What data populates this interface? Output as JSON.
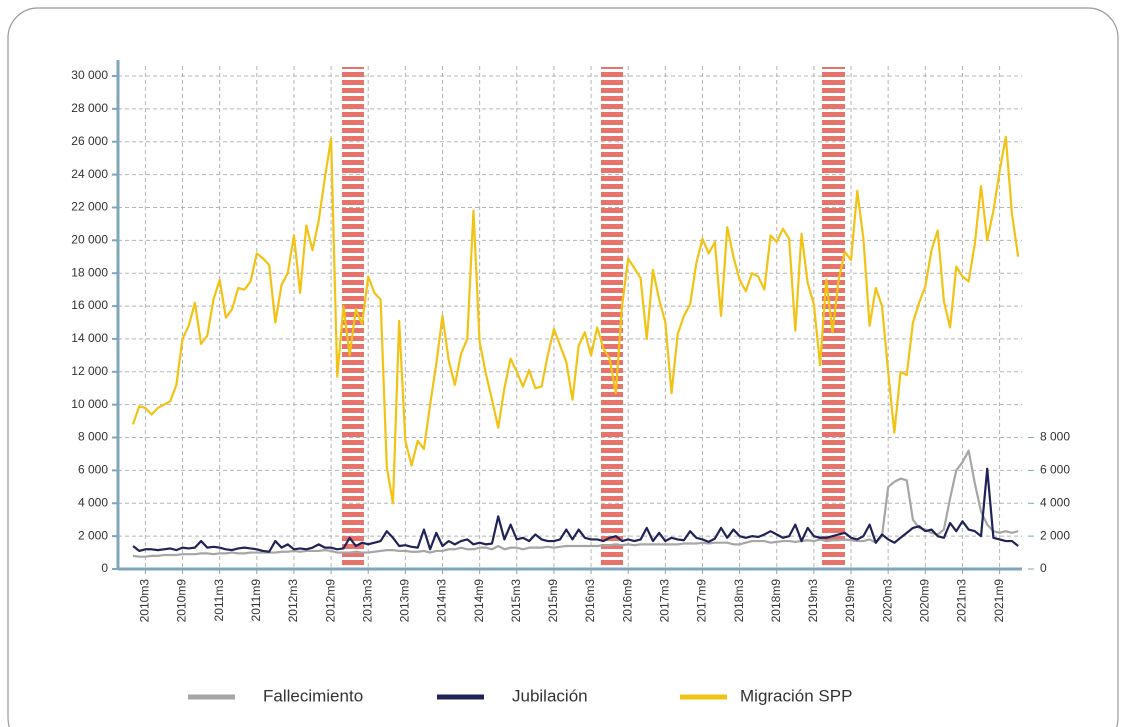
{
  "chart_data": {
    "type": "line",
    "categories": [
      null,
      null,
      "2010m3",
      null,
      null,
      null,
      null,
      null,
      "2010m9",
      null,
      null,
      null,
      null,
      null,
      "2011m3",
      null,
      null,
      null,
      null,
      null,
      "2011m9",
      null,
      null,
      null,
      null,
      null,
      "2012m3",
      null,
      null,
      null,
      null,
      null,
      "2012m9",
      null,
      null,
      null,
      null,
      null,
      "2013m3",
      null,
      null,
      null,
      null,
      null,
      "2013m9",
      null,
      null,
      null,
      null,
      null,
      "2014m3",
      null,
      null,
      null,
      null,
      null,
      "2014m9",
      null,
      null,
      null,
      null,
      null,
      "2015m3",
      null,
      null,
      null,
      null,
      null,
      "2015m9",
      null,
      null,
      null,
      null,
      null,
      "2016m3",
      null,
      null,
      null,
      null,
      null,
      "2016m9",
      null,
      null,
      null,
      null,
      null,
      "2017m3",
      null,
      null,
      null,
      null,
      null,
      "2017m9",
      null,
      null,
      null,
      null,
      null,
      "2018m3",
      null,
      null,
      null,
      null,
      null,
      "2018m9",
      null,
      null,
      null,
      null,
      null,
      "2019m3",
      null,
      null,
      null,
      null,
      null,
      "2019m9",
      null,
      null,
      null,
      null,
      null,
      "2020m3",
      null,
      null,
      null,
      null,
      null,
      "2020m9",
      null,
      null,
      null,
      null,
      null,
      "2021m3",
      null,
      null,
      null,
      null,
      null,
      "2021m9",
      null,
      null,
      null
    ],
    "series": [
      {
        "name": "Fallecimiento",
        "color": "#a6a6a6",
        "axis": "y2",
        "values": [
          800,
          750,
          750,
          800,
          800,
          850,
          850,
          850,
          900,
          900,
          900,
          950,
          950,
          900,
          950,
          950,
          1000,
          950,
          950,
          1000,
          1000,
          1000,
          1000,
          1000,
          1050,
          1050,
          1100,
          1050,
          1100,
          1100,
          1100,
          1150,
          1100,
          1000,
          1000,
          1000,
          1050,
          1000,
          1000,
          1050,
          1100,
          1150,
          1150,
          1100,
          1100,
          1050,
          1050,
          1100,
          1000,
          1100,
          1100,
          1200,
          1200,
          1300,
          1200,
          1200,
          1300,
          1300,
          1200,
          1400,
          1200,
          1300,
          1300,
          1200,
          1300,
          1300,
          1300,
          1350,
          1300,
          1350,
          1400,
          1400,
          1400,
          1400,
          1400,
          1400,
          1450,
          1450,
          1500,
          1450,
          1500,
          1450,
          1500,
          1500,
          1500,
          1500,
          1500,
          1500,
          1500,
          1550,
          1550,
          1550,
          1600,
          1550,
          1600,
          1600,
          1600,
          1500,
          1500,
          1600,
          1700,
          1700,
          1700,
          1600,
          1650,
          1700,
          1700,
          1650,
          1700,
          1750,
          1700,
          1800,
          1700,
          1750,
          1750,
          1800,
          1750,
          1700,
          1700,
          1800,
          1600,
          2000,
          5000,
          5300,
          5500,
          5400,
          3000,
          2500,
          2400,
          2200,
          2100,
          2400,
          4300,
          6000,
          6500,
          7200,
          5200,
          3500,
          2700,
          2300,
          2200,
          2300,
          2200,
          2300
        ]
      },
      {
        "name": "Jubilación",
        "color": "#1f2356",
        "axis": "y2",
        "values": [
          1400,
          1100,
          1200,
          1200,
          1150,
          1200,
          1250,
          1150,
          1300,
          1250,
          1300,
          1700,
          1300,
          1350,
          1300,
          1200,
          1150,
          1250,
          1300,
          1250,
          1200,
          1100,
          1050,
          1700,
          1300,
          1500,
          1200,
          1250,
          1200,
          1300,
          1500,
          1300,
          1300,
          1200,
          1250,
          1900,
          1400,
          1600,
          1500,
          1600,
          1700,
          2300,
          1900,
          1400,
          1450,
          1350,
          1300,
          2400,
          1200,
          2200,
          1400,
          1700,
          1500,
          1700,
          1800,
          1500,
          1600,
          1500,
          1550,
          3200,
          1800,
          2700,
          1800,
          1900,
          1700,
          2100,
          1800,
          1700,
          1700,
          1800,
          2400,
          1800,
          2400,
          1900,
          1800,
          1800,
          1700,
          1900,
          2000,
          1700,
          1800,
          1700,
          1800,
          2500,
          1700,
          2200,
          1700,
          1900,
          1800,
          1750,
          2300,
          1900,
          1800,
          1650,
          1850,
          2500,
          1900,
          2400,
          2000,
          1900,
          2000,
          1950,
          2100,
          2300,
          2100,
          1900,
          2000,
          2700,
          1700,
          2500,
          2000,
          1900,
          1900,
          2000,
          2100,
          2200,
          1900,
          1800,
          2000,
          2700,
          1600,
          2100,
          1800,
          1600,
          1900,
          2200,
          2500,
          2600,
          2300,
          2400,
          2000,
          1900,
          2800,
          2300,
          2900,
          2400,
          2300,
          2000,
          6100,
          1900,
          1800,
          1700,
          1700,
          1400
        ]
      },
      {
        "name": "Migración SPP",
        "color": "#f2c314",
        "values": [
          8800,
          9900,
          9800,
          9400,
          9800,
          10000,
          10200,
          11200,
          14000,
          14800,
          16200,
          13700,
          14200,
          16400,
          17600,
          15300,
          15800,
          17100,
          17000,
          17500,
          19200,
          18900,
          18500,
          15000,
          17300,
          18000,
          20300,
          16800,
          20900,
          19400,
          21200,
          23800,
          26200,
          11700,
          16000,
          13000,
          15800,
          14900,
          17800,
          16800,
          16400,
          6200,
          4000,
          15100,
          7800,
          6300,
          7800,
          7300,
          10000,
          12500,
          15400,
          12700,
          11200,
          13100,
          14000,
          21800,
          13800,
          11900,
          10300,
          8600,
          11000,
          12800,
          12000,
          11100,
          12100,
          11000,
          11100,
          13000,
          14600,
          13600,
          12600,
          10300,
          13600,
          14400,
          13000,
          14700,
          13400,
          12800,
          10700,
          16000,
          18900,
          18300,
          17700,
          14000,
          18200,
          16400,
          15000,
          10700,
          14300,
          15400,
          16100,
          18600,
          20100,
          19200,
          19900,
          15400,
          20800,
          19000,
          17600,
          16900,
          18000,
          17800,
          17000,
          20300,
          19900,
          20700,
          20100,
          14500,
          20400,
          17400,
          16100,
          12400,
          17600,
          14400,
          17600,
          19300,
          18800,
          23000,
          20100,
          14800,
          17100,
          16000,
          12000,
          8300,
          12000,
          11800,
          15000,
          16200,
          17200,
          19400,
          20600,
          16300,
          14700,
          18400,
          17800,
          17500,
          19800,
          23300,
          20000,
          21800,
          24200,
          26300,
          21600,
          19000
        ]
      }
    ],
    "ylim": [
      0,
      30000
    ],
    "yticks": [
      0,
      {
        "value": 2000,
        "label": "2 000"
      },
      {
        "value": 4000,
        "label": "4 000"
      },
      {
        "value": 6000,
        "label": "6 000"
      },
      {
        "value": 8000,
        "label": "8 000"
      },
      {
        "value": 10000,
        "label": "10 000"
      },
      {
        "value": 12000,
        "label": "12 000"
      },
      {
        "value": 14000,
        "label": "14 000"
      },
      {
        "value": 16000,
        "label": "16 000"
      },
      {
        "value": 18000,
        "label": "18 000"
      },
      {
        "value": 20000,
        "label": "20 000"
      },
      {
        "value": 22000,
        "label": "22 000"
      },
      {
        "value": 24000,
        "label": "24 000"
      },
      {
        "value": 26000,
        "label": "26 000"
      },
      {
        "value": 28000,
        "label": "28 000"
      },
      {
        "value": 30000,
        "label": "30 000"
      }
    ],
    "y2lim": [
      0,
      8000
    ],
    "y2ticks": [
      0,
      {
        "value": 2000,
        "label": "2 000"
      },
      {
        "value": 4000,
        "label": "4 000"
      },
      {
        "value": 6000,
        "label": "6 000"
      },
      {
        "value": 8000,
        "label": "8 000"
      }
    ],
    "grid": true
  }
}
